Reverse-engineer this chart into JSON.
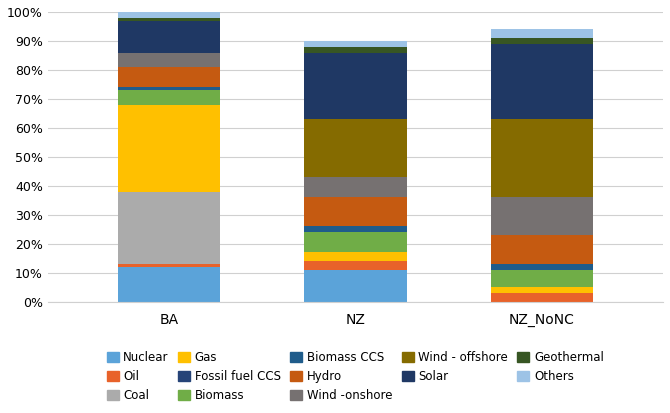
{
  "categories": [
    "BA",
    "NZ",
    "NZ_NoNC"
  ],
  "series": [
    {
      "label": "Nuclear",
      "color": "#5BA3D9",
      "values": [
        12,
        11,
        0
      ]
    },
    {
      "label": "Oil",
      "color": "#E8622A",
      "values": [
        1,
        3,
        3
      ]
    },
    {
      "label": "Coal",
      "color": "#ABABAB",
      "values": [
        25,
        0,
        0
      ]
    },
    {
      "label": "Gas",
      "color": "#FFC000",
      "values": [
        30,
        3,
        2
      ]
    },
    {
      "label": "Fossil fuel CCS",
      "color": "#264478",
      "values": [
        0,
        0,
        0
      ]
    },
    {
      "label": "Biomass",
      "color": "#70AD47",
      "values": [
        5,
        7,
        6
      ]
    },
    {
      "label": "Biomass CCS",
      "color": "#1F5C8B",
      "values": [
        1,
        2,
        2
      ]
    },
    {
      "label": "Hydro",
      "color": "#C55A11",
      "values": [
        7,
        10,
        10
      ]
    },
    {
      "label": "Wind -onshore",
      "color": "#767171",
      "values": [
        5,
        7,
        13
      ]
    },
    {
      "label": "Wind - offshore",
      "color": "#856B00",
      "values": [
        0,
        20,
        27
      ]
    },
    {
      "label": "Solar",
      "color": "#1F3864",
      "values": [
        11,
        23,
        26
      ]
    },
    {
      "label": "Geothermal",
      "color": "#375623",
      "values": [
        1,
        2,
        2
      ]
    },
    {
      "label": "Others",
      "color": "#9DC3E6",
      "values": [
        2,
        2,
        3
      ]
    }
  ],
  "ylim": [
    0,
    100
  ],
  "yticks": [
    0,
    10,
    20,
    30,
    40,
    50,
    60,
    70,
    80,
    90,
    100
  ],
  "ytick_labels": [
    "0%",
    "10%",
    "20%",
    "30%",
    "40%",
    "50%",
    "60%",
    "70%",
    "80%",
    "90%",
    "100%"
  ],
  "background_color": "#FFFFFF",
  "grid_color": "#D0D0D0",
  "bar_width": 0.55,
  "figsize": [
    6.7,
    4.13
  ],
  "dpi": 100,
  "legend_order": [
    0,
    1,
    2,
    3,
    4,
    5,
    6,
    7,
    8,
    9,
    10,
    11,
    12
  ]
}
